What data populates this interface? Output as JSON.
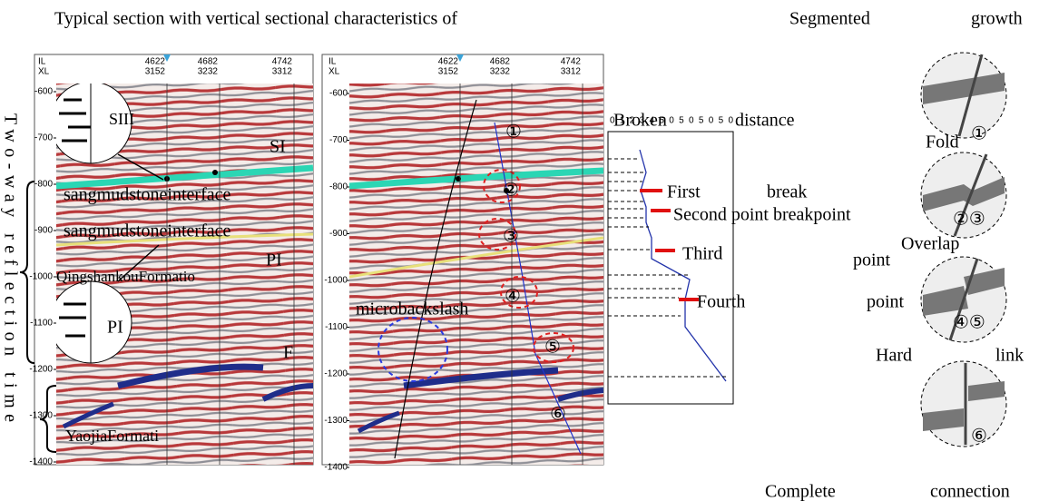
{
  "title": "Typical section with vertical sectional characteristics of",
  "segmented": [
    "Segmented",
    "growth"
  ],
  "axis_label": "Two-way reflection time",
  "panels": [
    {
      "il_label": "IL",
      "xl_label": "XL",
      "il": [
        4622,
        4682,
        4742
      ],
      "xl": [
        3152,
        3232,
        3312
      ],
      "yticks": [
        -600,
        -700,
        -800,
        -900,
        -1000,
        -1100,
        -1200,
        -1300,
        -1400
      ]
    },
    {
      "il_label": "IL",
      "xl_label": "XL",
      "il": [
        4622,
        4682,
        4742
      ],
      "xl": [
        3152,
        3232,
        3312
      ],
      "yticks": [
        -600,
        -700,
        -800,
        -900,
        -1000,
        -1100,
        -1200,
        -1300,
        -1400
      ]
    }
  ],
  "left_labels": [
    "SIII",
    "SI",
    "sangmudstoneinterface",
    "sangmudstoneinterface",
    "PI",
    "QingshankouFormatio",
    "PI",
    "F",
    "YaojiaFormati"
  ],
  "right_labels": {
    "fault_note": "microbackslash",
    "markers": [
      "①",
      "②",
      "③",
      "④",
      "⑤",
      "⑥"
    ]
  },
  "breakpoints": {
    "header": [
      "Broken",
      "distance"
    ],
    "scale": "0 1 2 3 4 5 0 5 0 5 0 5 0",
    "labels": [
      "First",
      "break",
      "Second point breakpoint",
      "Third",
      "point",
      "Fourth",
      "point"
    ]
  },
  "stages": {
    "labels": [
      "Fold",
      "Overlap",
      "Hard",
      "link",
      "Complete",
      "connection"
    ],
    "icons": [
      "①",
      "②③",
      "④⑤",
      "⑥"
    ]
  }
}
